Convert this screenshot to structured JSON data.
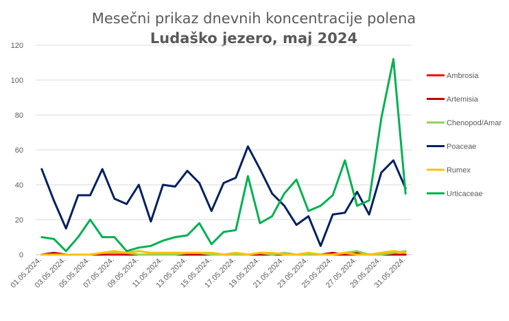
{
  "chart_data": {
    "type": "line",
    "title": "Mesečni prikaz dnevnih koncentracije polena",
    "subtitle": "Ludaško jezero, maj 2024",
    "xlabel": "",
    "ylabel": "",
    "ylim": [
      0,
      120
    ],
    "yticks": [
      0,
      20,
      40,
      60,
      80,
      100,
      120
    ],
    "grid": true,
    "legend_position": "right",
    "x": [
      "01.05.2024.",
      "02.05.2024.",
      "03.05.2024.",
      "04.05.2024.",
      "05.05.2024.",
      "06.05.2024.",
      "07.05.2024.",
      "08.05.2024.",
      "09.05.2024.",
      "10.05.2024.",
      "11.05.2024.",
      "12.05.2024.",
      "13.05.2024.",
      "14.05.2024.",
      "15.05.2024.",
      "16.05.2024.",
      "17.05.2024.",
      "18.05.2024.",
      "19.05.2024.",
      "20.05.2024.",
      "21.05.2024.",
      "22.05.2024.",
      "23.05.2024.",
      "24.05.2024.",
      "25.05.2024.",
      "26.05.2024.",
      "27.05.2024.",
      "28.05.2024.",
      "29.05.2024.",
      "30.05.2024.",
      "31.05.2024."
    ],
    "xtick_labels": [
      "01.05.2024.",
      "03.05.2024.",
      "05.05.2024.",
      "07.05.2024.",
      "09.05.2024.",
      "11.05.2024.",
      "13.05.2024.",
      "15.05.2024.",
      "17.05.2024.",
      "19.05.2024.",
      "21.05.2024.",
      "23.05.2024.",
      "25.05.2024.",
      "27.05.2024.",
      "29.05.2024.",
      "31.05.2024."
    ],
    "series": [
      {
        "name": "Ambrosia",
        "color": "#ff0000",
        "values": [
          0,
          0,
          0,
          0,
          0,
          0,
          0,
          0,
          0,
          0,
          0,
          0,
          0,
          0,
          0,
          0,
          0,
          0,
          0,
          0,
          0,
          0,
          0,
          0,
          0,
          0,
          0,
          0,
          0,
          0,
          0
        ]
      },
      {
        "name": "Artemisia",
        "color": "#c00000",
        "values": [
          0,
          1,
          0,
          0,
          0,
          0,
          1,
          0,
          0,
          0,
          0,
          0,
          0,
          0,
          0,
          0,
          0,
          0,
          0,
          0,
          0,
          0,
          0,
          0,
          1,
          0,
          1,
          0,
          0,
          0,
          0
        ]
      },
      {
        "name": "Chenopod/Amar",
        "color": "#92d050",
        "values": [
          0,
          0,
          0,
          0,
          0,
          1,
          1,
          1,
          0,
          0,
          0,
          0,
          1,
          1,
          0,
          0,
          0,
          0,
          1,
          0,
          1,
          0,
          0,
          0,
          0,
          1,
          2,
          0,
          0,
          1,
          2
        ]
      },
      {
        "name": "Poaceae",
        "color": "#002060",
        "values": [
          49,
          31,
          15,
          34,
          34,
          49,
          32,
          29,
          40,
          19,
          40,
          39,
          48,
          41,
          25,
          41,
          44,
          62,
          49,
          35,
          28,
          17,
          22,
          5,
          23,
          24,
          36,
          23,
          47,
          54,
          38
        ]
      },
      {
        "name": "Rumex",
        "color": "#ffc000",
        "values": [
          0,
          0,
          0,
          0,
          0,
          1,
          2,
          1,
          2,
          1,
          1,
          1,
          1,
          1,
          1,
          0,
          1,
          0,
          1,
          1,
          0,
          0,
          1,
          0,
          0,
          1,
          0,
          0,
          1,
          2,
          1
        ]
      },
      {
        "name": "Urticaceae",
        "color": "#00b050",
        "values": [
          10,
          9,
          2,
          10,
          20,
          10,
          10,
          2,
          4,
          5,
          8,
          10,
          11,
          18,
          6,
          13,
          14,
          45,
          18,
          22,
          35,
          43,
          25,
          28,
          34,
          54,
          28,
          31,
          78,
          112,
          35
        ]
      }
    ]
  }
}
